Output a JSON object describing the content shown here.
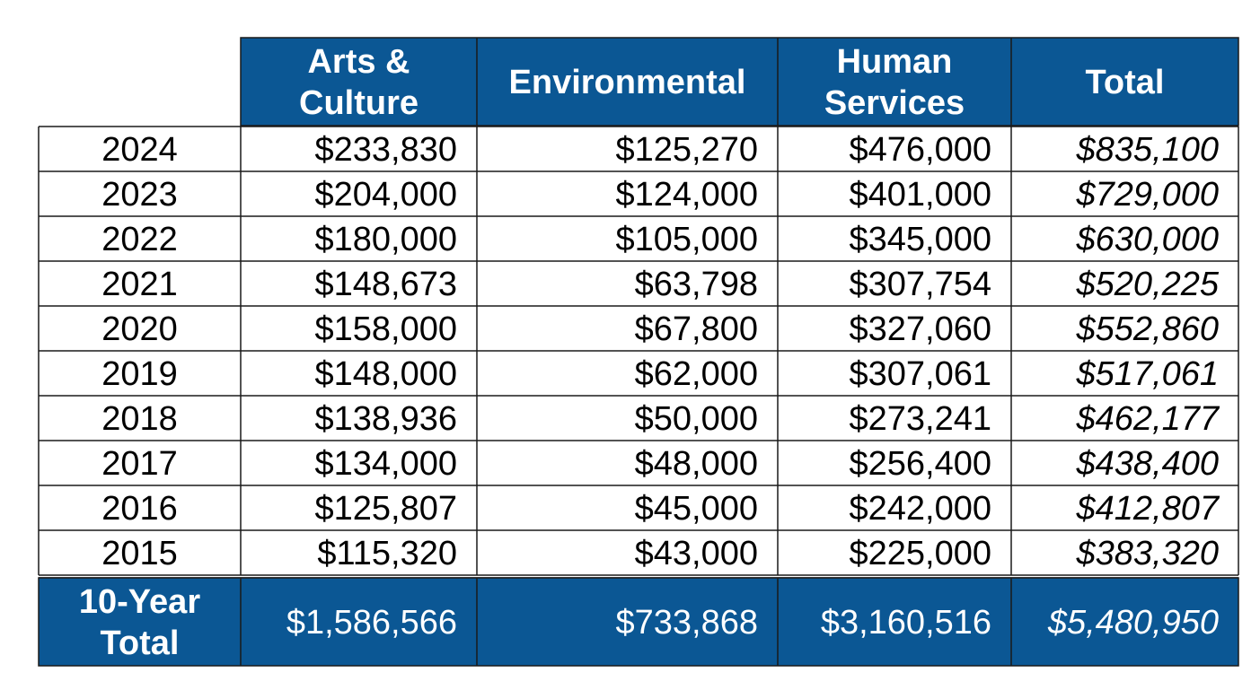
{
  "colors": {
    "header_bg": "#0b5794",
    "header_text": "#ffffff",
    "cell_bg": "#ffffff",
    "cell_text": "#000000",
    "border": "#1a1a1a"
  },
  "chart_data": {
    "type": "table",
    "columns": [
      {
        "key": "year",
        "label_lines": []
      },
      {
        "key": "arts",
        "label_lines": [
          "Arts &",
          "Culture"
        ]
      },
      {
        "key": "env",
        "label_lines": [
          "Environmental"
        ]
      },
      {
        "key": "human",
        "label_lines": [
          "Human",
          "Services"
        ]
      },
      {
        "key": "total",
        "label_lines": [
          "Total"
        ]
      }
    ],
    "rows": [
      {
        "year": "2024",
        "arts": "$233,830",
        "env": "$125,270",
        "human": "$476,000",
        "total": "$835,100"
      },
      {
        "year": "2023",
        "arts": "$204,000",
        "env": "$124,000",
        "human": "$401,000",
        "total": "$729,000"
      },
      {
        "year": "2022",
        "arts": "$180,000",
        "env": "$105,000",
        "human": "$345,000",
        "total": "$630,000"
      },
      {
        "year": "2021",
        "arts": "$148,673",
        "env": "$63,798",
        "human": "$307,754",
        "total": "$520,225"
      },
      {
        "year": "2020",
        "arts": "$158,000",
        "env": "$67,800",
        "human": "$327,060",
        "total": "$552,860"
      },
      {
        "year": "2019",
        "arts": "$148,000",
        "env": "$62,000",
        "human": "$307,061",
        "total": "$517,061"
      },
      {
        "year": "2018",
        "arts": "$138,936",
        "env": "$50,000",
        "human": "$273,241",
        "total": "$462,177"
      },
      {
        "year": "2017",
        "arts": "$134,000",
        "env": "$48,000",
        "human": "$256,400",
        "total": "$438,400"
      },
      {
        "year": "2016",
        "arts": "$125,807",
        "env": "$45,000",
        "human": "$242,000",
        "total": "$412,807"
      },
      {
        "year": "2015",
        "arts": "$115,320",
        "env": "$43,000",
        "human": "$225,000",
        "total": "$383,320"
      }
    ],
    "footer": {
      "label_lines": [
        "10-Year",
        "Total"
      ],
      "arts": "$1,586,566",
      "env": "$733,868",
      "human": "$3,160,516",
      "total": "$5,480,950"
    }
  }
}
